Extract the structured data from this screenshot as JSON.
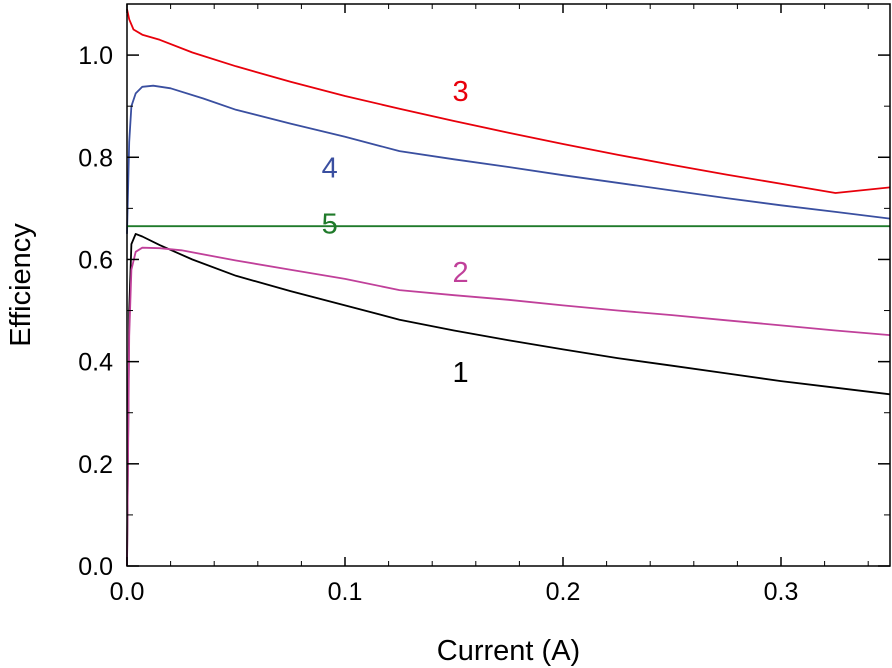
{
  "chart_data": {
    "type": "line",
    "title": "",
    "xlabel": "Current (A)",
    "ylabel": "Efficiency",
    "xlim": [
      0.0,
      0.35
    ],
    "ylim": [
      0.0,
      1.1
    ],
    "grid": false,
    "legend": "none",
    "x_ticks": [
      {
        "value": 0.0,
        "label": "0.0"
      },
      {
        "value": 0.1,
        "label": "0.1"
      },
      {
        "value": 0.2,
        "label": "0.2"
      },
      {
        "value": 0.3,
        "label": "0.3"
      }
    ],
    "y_ticks": [
      {
        "value": 0.0,
        "label": "0.0"
      },
      {
        "value": 0.2,
        "label": "0.2"
      },
      {
        "value": 0.4,
        "label": "0.4"
      },
      {
        "value": 0.6,
        "label": "0.6"
      },
      {
        "value": 0.8,
        "label": "0.8"
      },
      {
        "value": 1.0,
        "label": "1.0"
      }
    ],
    "series": [
      {
        "name": "1",
        "color": "#000000",
        "label_at": [
          0.153,
          0.38
        ],
        "points": [
          [
            0.0,
            0.0
          ],
          [
            0.001,
            0.5
          ],
          [
            0.002,
            0.63
          ],
          [
            0.004,
            0.65
          ],
          [
            0.007,
            0.645
          ],
          [
            0.015,
            0.628
          ],
          [
            0.03,
            0.6
          ],
          [
            0.05,
            0.568
          ],
          [
            0.075,
            0.538
          ],
          [
            0.1,
            0.51
          ],
          [
            0.125,
            0.482
          ],
          [
            0.15,
            0.461
          ],
          [
            0.175,
            0.442
          ],
          [
            0.2,
            0.424
          ],
          [
            0.225,
            0.407
          ],
          [
            0.25,
            0.392
          ],
          [
            0.275,
            0.377
          ],
          [
            0.3,
            0.362
          ],
          [
            0.325,
            0.349
          ],
          [
            0.35,
            0.336
          ]
        ]
      },
      {
        "name": "2",
        "color": "#c0409a",
        "label_at": [
          0.153,
          0.575
        ],
        "points": [
          [
            0.0,
            0.0
          ],
          [
            0.001,
            0.45
          ],
          [
            0.002,
            0.58
          ],
          [
            0.004,
            0.615
          ],
          [
            0.007,
            0.623
          ],
          [
            0.015,
            0.622
          ],
          [
            0.025,
            0.618
          ],
          [
            0.05,
            0.598
          ],
          [
            0.075,
            0.58
          ],
          [
            0.1,
            0.562
          ],
          [
            0.125,
            0.54
          ],
          [
            0.15,
            0.53
          ],
          [
            0.175,
            0.521
          ],
          [
            0.2,
            0.51
          ],
          [
            0.225,
            0.5
          ],
          [
            0.25,
            0.491
          ],
          [
            0.275,
            0.481
          ],
          [
            0.3,
            0.471
          ],
          [
            0.325,
            0.461
          ],
          [
            0.35,
            0.452
          ]
        ]
      },
      {
        "name": "3",
        "color": "#e8000b",
        "label_at": [
          0.153,
          0.93
        ],
        "points": [
          [
            0.0,
            1.09
          ],
          [
            0.001,
            1.07
          ],
          [
            0.003,
            1.05
          ],
          [
            0.007,
            1.04
          ],
          [
            0.015,
            1.03
          ],
          [
            0.03,
            1.005
          ],
          [
            0.05,
            0.978
          ],
          [
            0.075,
            0.948
          ],
          [
            0.1,
            0.92
          ],
          [
            0.125,
            0.895
          ],
          [
            0.15,
            0.871
          ],
          [
            0.175,
            0.848
          ],
          [
            0.2,
            0.826
          ],
          [
            0.225,
            0.805
          ],
          [
            0.25,
            0.785
          ],
          [
            0.275,
            0.766
          ],
          [
            0.3,
            0.748
          ],
          [
            0.325,
            0.73
          ],
          [
            0.35,
            0.741
          ]
        ]
      },
      {
        "name": "4",
        "color": "#3a4fa0",
        "label_at": [
          0.093,
          0.78
        ],
        "points": [
          [
            0.0,
            0.65
          ],
          [
            0.001,
            0.83
          ],
          [
            0.002,
            0.9
          ],
          [
            0.004,
            0.925
          ],
          [
            0.007,
            0.938
          ],
          [
            0.012,
            0.94
          ],
          [
            0.02,
            0.935
          ],
          [
            0.035,
            0.915
          ],
          [
            0.05,
            0.893
          ],
          [
            0.075,
            0.866
          ],
          [
            0.1,
            0.84
          ],
          [
            0.125,
            0.812
          ],
          [
            0.15,
            0.796
          ],
          [
            0.175,
            0.781
          ],
          [
            0.2,
            0.765
          ],
          [
            0.225,
            0.75
          ],
          [
            0.25,
            0.735
          ],
          [
            0.275,
            0.72
          ],
          [
            0.3,
            0.706
          ],
          [
            0.325,
            0.693
          ],
          [
            0.35,
            0.68
          ]
        ]
      },
      {
        "name": "5",
        "color": "#1f7a2a",
        "label_at": [
          0.093,
          0.67
        ],
        "points": [
          [
            0.0,
            0.665
          ],
          [
            0.35,
            0.665
          ]
        ]
      }
    ]
  }
}
